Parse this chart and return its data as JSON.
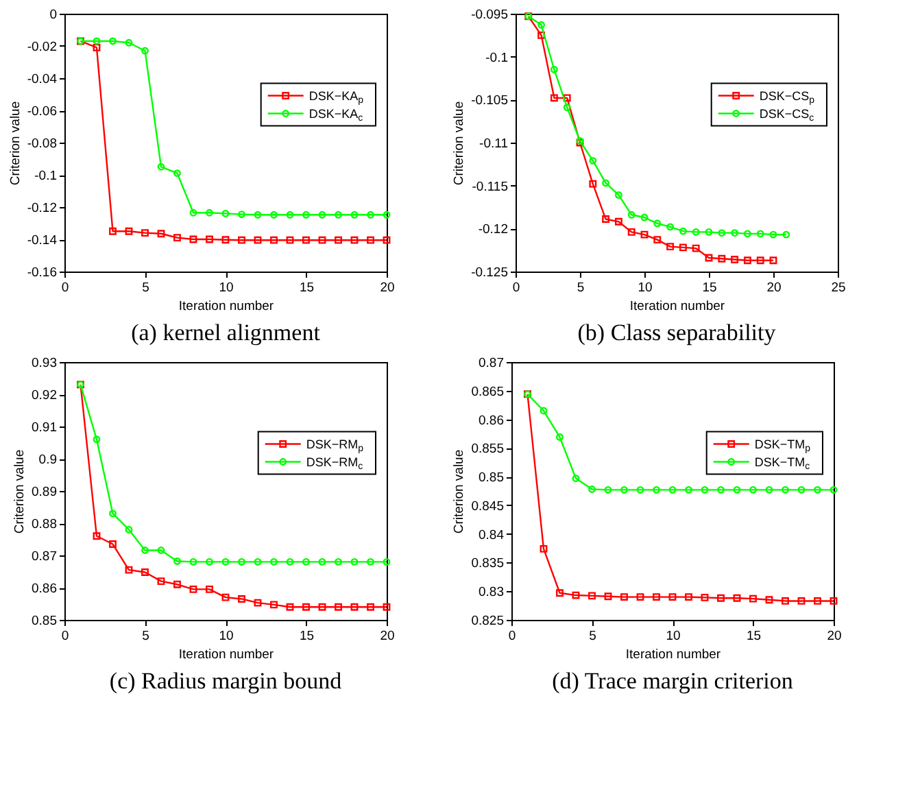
{
  "chart_data": [
    {
      "type": "line",
      "title": "(a) kernel alignment",
      "xlabel": "Iteration number",
      "ylabel": "Criterion value",
      "xlim": [
        0,
        20
      ],
      "xticks": [
        0,
        5,
        10,
        15,
        20
      ],
      "ylim": [
        -0.16,
        0
      ],
      "yticks": [
        -0.16,
        -0.14,
        -0.12,
        -0.1,
        -0.08,
        -0.06,
        -0.04,
        -0.02,
        0
      ],
      "grid": false,
      "legend": "right",
      "x": [
        1,
        2,
        3,
        4,
        5,
        6,
        7,
        8,
        9,
        10,
        11,
        12,
        13,
        14,
        15,
        16,
        17,
        18,
        19,
        20
      ],
      "series": [
        {
          "name": "DSK−KA$_{p}$",
          "color": "#ff0000",
          "marker": "square",
          "values": [
            -0.017,
            -0.021,
            -0.135,
            -0.135,
            -0.136,
            -0.1365,
            -0.139,
            -0.14,
            -0.14,
            -0.1403,
            -0.1405,
            -0.1405,
            -0.1405,
            -0.1405,
            -0.1405,
            -0.1405,
            -0.1405,
            -0.1405,
            -0.1405,
            -0.1405
          ]
        },
        {
          "name": "DSK−KA$_{c}$",
          "color": "#00ff00",
          "marker": "circle",
          "values": [
            -0.017,
            -0.017,
            -0.017,
            -0.018,
            -0.023,
            -0.095,
            -0.099,
            -0.1235,
            -0.1235,
            -0.124,
            -0.1245,
            -0.1248,
            -0.1248,
            -0.1248,
            -0.1248,
            -0.1248,
            -0.1248,
            -0.1248,
            -0.1248,
            -0.1248
          ]
        }
      ]
    },
    {
      "type": "line",
      "title": "(b) Class separability",
      "xlabel": "Iteration number",
      "ylabel": "Criterion value",
      "xlim": [
        0,
        25
      ],
      "xticks": [
        0,
        5,
        10,
        15,
        20,
        25
      ],
      "ylim": [
        -0.125,
        -0.095
      ],
      "yticks": [
        -0.125,
        -0.12,
        -0.115,
        -0.11,
        -0.105,
        -0.1,
        -0.095
      ],
      "grid": false,
      "legend": "right",
      "series": [
        {
          "name": "DSK−CS$_{p}$",
          "color": "#ff0000",
          "marker": "square",
          "x": [
            1,
            2,
            3,
            4,
            5,
            6,
            7,
            8,
            9,
            10,
            11,
            12,
            13,
            14,
            15,
            16,
            17,
            18,
            19,
            20
          ],
          "values": [
            -0.0953,
            -0.0975,
            -0.1048,
            -0.1048,
            -0.11,
            -0.1148,
            -0.1189,
            -0.1192,
            -0.1204,
            -0.1207,
            -0.1213,
            -0.1221,
            -0.1222,
            -0.1223,
            -0.1234,
            -0.1235,
            -0.1236,
            -0.1237,
            -0.1237,
            -0.1237
          ]
        },
        {
          "name": "DSK−CS$_{c}$",
          "color": "#00ff00",
          "marker": "circle",
          "x": [
            1,
            2,
            3,
            4,
            5,
            6,
            7,
            8,
            9,
            10,
            11,
            12,
            13,
            14,
            15,
            16,
            17,
            18,
            19,
            20,
            21
          ],
          "values": [
            -0.0953,
            -0.0963,
            -0.1015,
            -0.1059,
            -0.1098,
            -0.1121,
            -0.1147,
            -0.1161,
            -0.1184,
            -0.1187,
            -0.1194,
            -0.1198,
            -0.1203,
            -0.1204,
            -0.1204,
            -0.1205,
            -0.1205,
            -0.1206,
            -0.1206,
            -0.1207,
            -0.1207
          ]
        }
      ]
    },
    {
      "type": "line",
      "title": "(c) Radius margin bound",
      "xlabel": "Iteration number",
      "ylabel": "Criterion value",
      "xlim": [
        0,
        20
      ],
      "xticks": [
        0,
        5,
        10,
        15,
        20
      ],
      "ylim": [
        0.85,
        0.93
      ],
      "yticks": [
        0.85,
        0.86,
        0.87,
        0.88,
        0.89,
        0.9,
        0.91,
        0.92,
        0.93
      ],
      "grid": false,
      "legend": "right",
      "x": [
        1,
        2,
        3,
        4,
        5,
        6,
        7,
        8,
        9,
        10,
        11,
        12,
        13,
        14,
        15,
        16,
        17,
        18,
        19,
        20
      ],
      "series": [
        {
          "name": "DSK−RM$_{p}$",
          "color": "#ff0000",
          "marker": "square",
          "values": [
            0.923,
            0.876,
            0.8735,
            0.8655,
            0.8648,
            0.862,
            0.861,
            0.8595,
            0.8595,
            0.857,
            0.8565,
            0.8553,
            0.8547,
            0.854,
            0.854,
            0.854,
            0.854,
            0.854,
            0.854,
            0.854
          ]
        },
        {
          "name": "DSK−RM$_{c}$",
          "color": "#00ff00",
          "marker": "circle",
          "values": [
            0.923,
            0.906,
            0.883,
            0.878,
            0.8716,
            0.8716,
            0.8682,
            0.868,
            0.868,
            0.868,
            0.868,
            0.868,
            0.868,
            0.868,
            0.868,
            0.868,
            0.868,
            0.868,
            0.868,
            0.868
          ]
        }
      ]
    },
    {
      "type": "line",
      "title": "(d) Trace margin criterion",
      "xlabel": "Iteration number",
      "ylabel": "Criterion value",
      "xlim": [
        0,
        20
      ],
      "xticks": [
        0,
        5,
        10,
        15,
        20
      ],
      "ylim": [
        0.825,
        0.87
      ],
      "yticks": [
        0.825,
        0.83,
        0.835,
        0.84,
        0.845,
        0.85,
        0.855,
        0.86,
        0.865,
        0.87
      ],
      "grid": false,
      "legend": "right",
      "x": [
        1,
        2,
        3,
        4,
        5,
        6,
        7,
        8,
        9,
        10,
        11,
        12,
        13,
        14,
        15,
        16,
        17,
        18,
        19,
        20
      ],
      "series": [
        {
          "name": "DSK−TM$_{p}$",
          "color": "#ff0000",
          "marker": "square",
          "values": [
            0.8644,
            0.8374,
            0.8297,
            0.8293,
            0.8292,
            0.8291,
            0.829,
            0.829,
            0.829,
            0.829,
            0.829,
            0.8289,
            0.8288,
            0.8288,
            0.8287,
            0.8285,
            0.8283,
            0.8283,
            0.8283,
            0.8283
          ]
        },
        {
          "name": "DSK−TM$_{c}$",
          "color": "#00ff00",
          "marker": "circle",
          "values": [
            0.8644,
            0.8615,
            0.8569,
            0.8497,
            0.8478,
            0.8477,
            0.8477,
            0.8477,
            0.8477,
            0.8477,
            0.8477,
            0.8477,
            0.8477,
            0.8477,
            0.8477,
            0.8477,
            0.8477,
            0.8477,
            0.8477,
            0.8477
          ]
        }
      ]
    }
  ]
}
